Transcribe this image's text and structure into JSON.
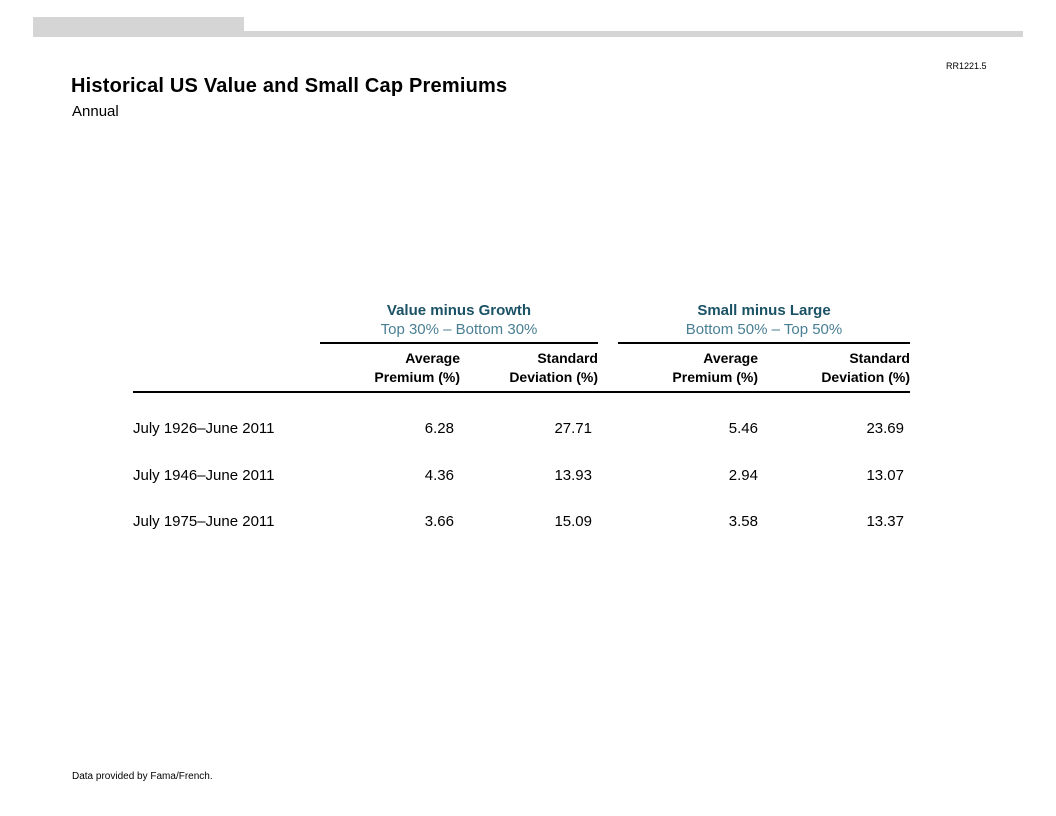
{
  "page": {
    "ref_code": "RR1221.5",
    "title": "Historical US Value and Small Cap Premiums",
    "subtitle": "Annual",
    "footnote": "Data provided by Fama/French."
  },
  "colors": {
    "accent_dark_teal": "#1b5265",
    "accent_light_teal": "#4a7f93",
    "decorative_bar_gray": "#d5d5d5",
    "rule_black": "#000000"
  },
  "table": {
    "groups": [
      {
        "title": "Value minus Growth",
        "subtitle": "Top 30% – Bottom 30%"
      },
      {
        "title": "Small minus Large",
        "subtitle": "Bottom 50% – Top 50%"
      }
    ],
    "columns": [
      {
        "line1": "Average",
        "line2": "Premium (%)"
      },
      {
        "line1": "Standard",
        "line2": "Deviation (%)"
      },
      {
        "line1": "Average",
        "line2": "Premium (%)"
      },
      {
        "line1": "Standard",
        "line2": "Deviation (%)"
      }
    ],
    "rows": [
      {
        "label": "July 1926–June 2011",
        "values": [
          "6.28",
          "27.71",
          "5.46",
          "23.69"
        ]
      },
      {
        "label": "July 1946–June 2011",
        "values": [
          "4.36",
          "13.93",
          "2.94",
          "13.07"
        ]
      },
      {
        "label": "July 1975–June 2011",
        "values": [
          "3.66",
          "15.09",
          "3.58",
          "13.37"
        ]
      }
    ]
  }
}
